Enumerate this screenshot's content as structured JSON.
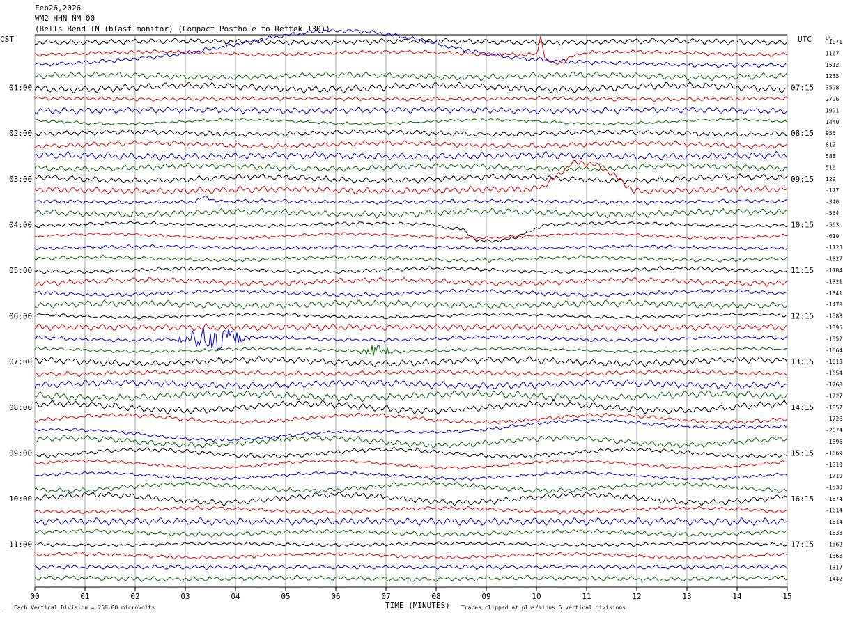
{
  "header": {
    "date": "Feb26,2026",
    "station": "WM2 HHN NM 00",
    "description": "(Bells Bend TN (blast monitor) (Compact Posthole to Reftek 130))"
  },
  "chart_data": {
    "type": "line",
    "left_timezone": "CST",
    "right_timezone": "UTC",
    "right_column_header": "DC",
    "xlabel": "TIME (MINUTES)",
    "x_ticks": [
      "00",
      "01",
      "02",
      "03",
      "04",
      "05",
      "06",
      "07",
      "08",
      "09",
      "10",
      "11",
      "12",
      "13",
      "14",
      "15"
    ],
    "xlim": [
      0,
      15
    ],
    "left_hour_labels": [
      {
        "trace": 4,
        "label": "01:00"
      },
      {
        "trace": 8,
        "label": "02:00"
      },
      {
        "trace": 12,
        "label": "03:00"
      },
      {
        "trace": 16,
        "label": "04:00"
      },
      {
        "trace": 20,
        "label": "05:00"
      },
      {
        "trace": 24,
        "label": "06:00"
      },
      {
        "trace": 28,
        "label": "07:00"
      },
      {
        "trace": 32,
        "label": "08:00"
      },
      {
        "trace": 36,
        "label": "09:00"
      },
      {
        "trace": 40,
        "label": "10:00"
      },
      {
        "trace": 44,
        "label": "11:00"
      }
    ],
    "right_hour_labels": [
      {
        "trace": 4,
        "label": "07:15"
      },
      {
        "trace": 8,
        "label": "08:15"
      },
      {
        "trace": 12,
        "label": "09:15"
      },
      {
        "trace": 16,
        "label": "10:15"
      },
      {
        "trace": 20,
        "label": "11:15"
      },
      {
        "trace": 24,
        "label": "12:15"
      },
      {
        "trace": 28,
        "label": "13:15"
      },
      {
        "trace": 32,
        "label": "14:15"
      },
      {
        "trace": 36,
        "label": "15:15"
      },
      {
        "trace": 40,
        "label": "16:15"
      },
      {
        "trace": 44,
        "label": "17:15"
      }
    ],
    "trace_color_cycle": [
      "#000000",
      "#dd0000",
      "#0000cc",
      "#006600"
    ],
    "dc_offsets": [
      "-1071",
      "1167",
      "1512",
      "1235",
      "3598",
      "2706",
      "1991",
      "1440",
      "956",
      "812",
      "588",
      "516",
      "129",
      "-177",
      "-340",
      "-564",
      "-563",
      "-610",
      "-1123",
      "-1327",
      "-1184",
      "-1321",
      "-1341",
      "-1470",
      "-1588",
      "-1395",
      "-1557",
      "-1664",
      "-1613",
      "-1654",
      "-1760",
      "-1727",
      "-1857",
      "-1726",
      "-2074",
      "-1896",
      "-1669",
      "-1310",
      "-1719",
      "-1530",
      "-1674",
      "-1614",
      "-1614",
      "-1633",
      "-1562",
      "-1368",
      "-1317",
      "-1442"
    ],
    "grid": true,
    "footer_left": "Each Vertical Division =  250.00 microvolts",
    "footer_right": "Traces clipped at plus/minus 5 vertical divisions"
  }
}
